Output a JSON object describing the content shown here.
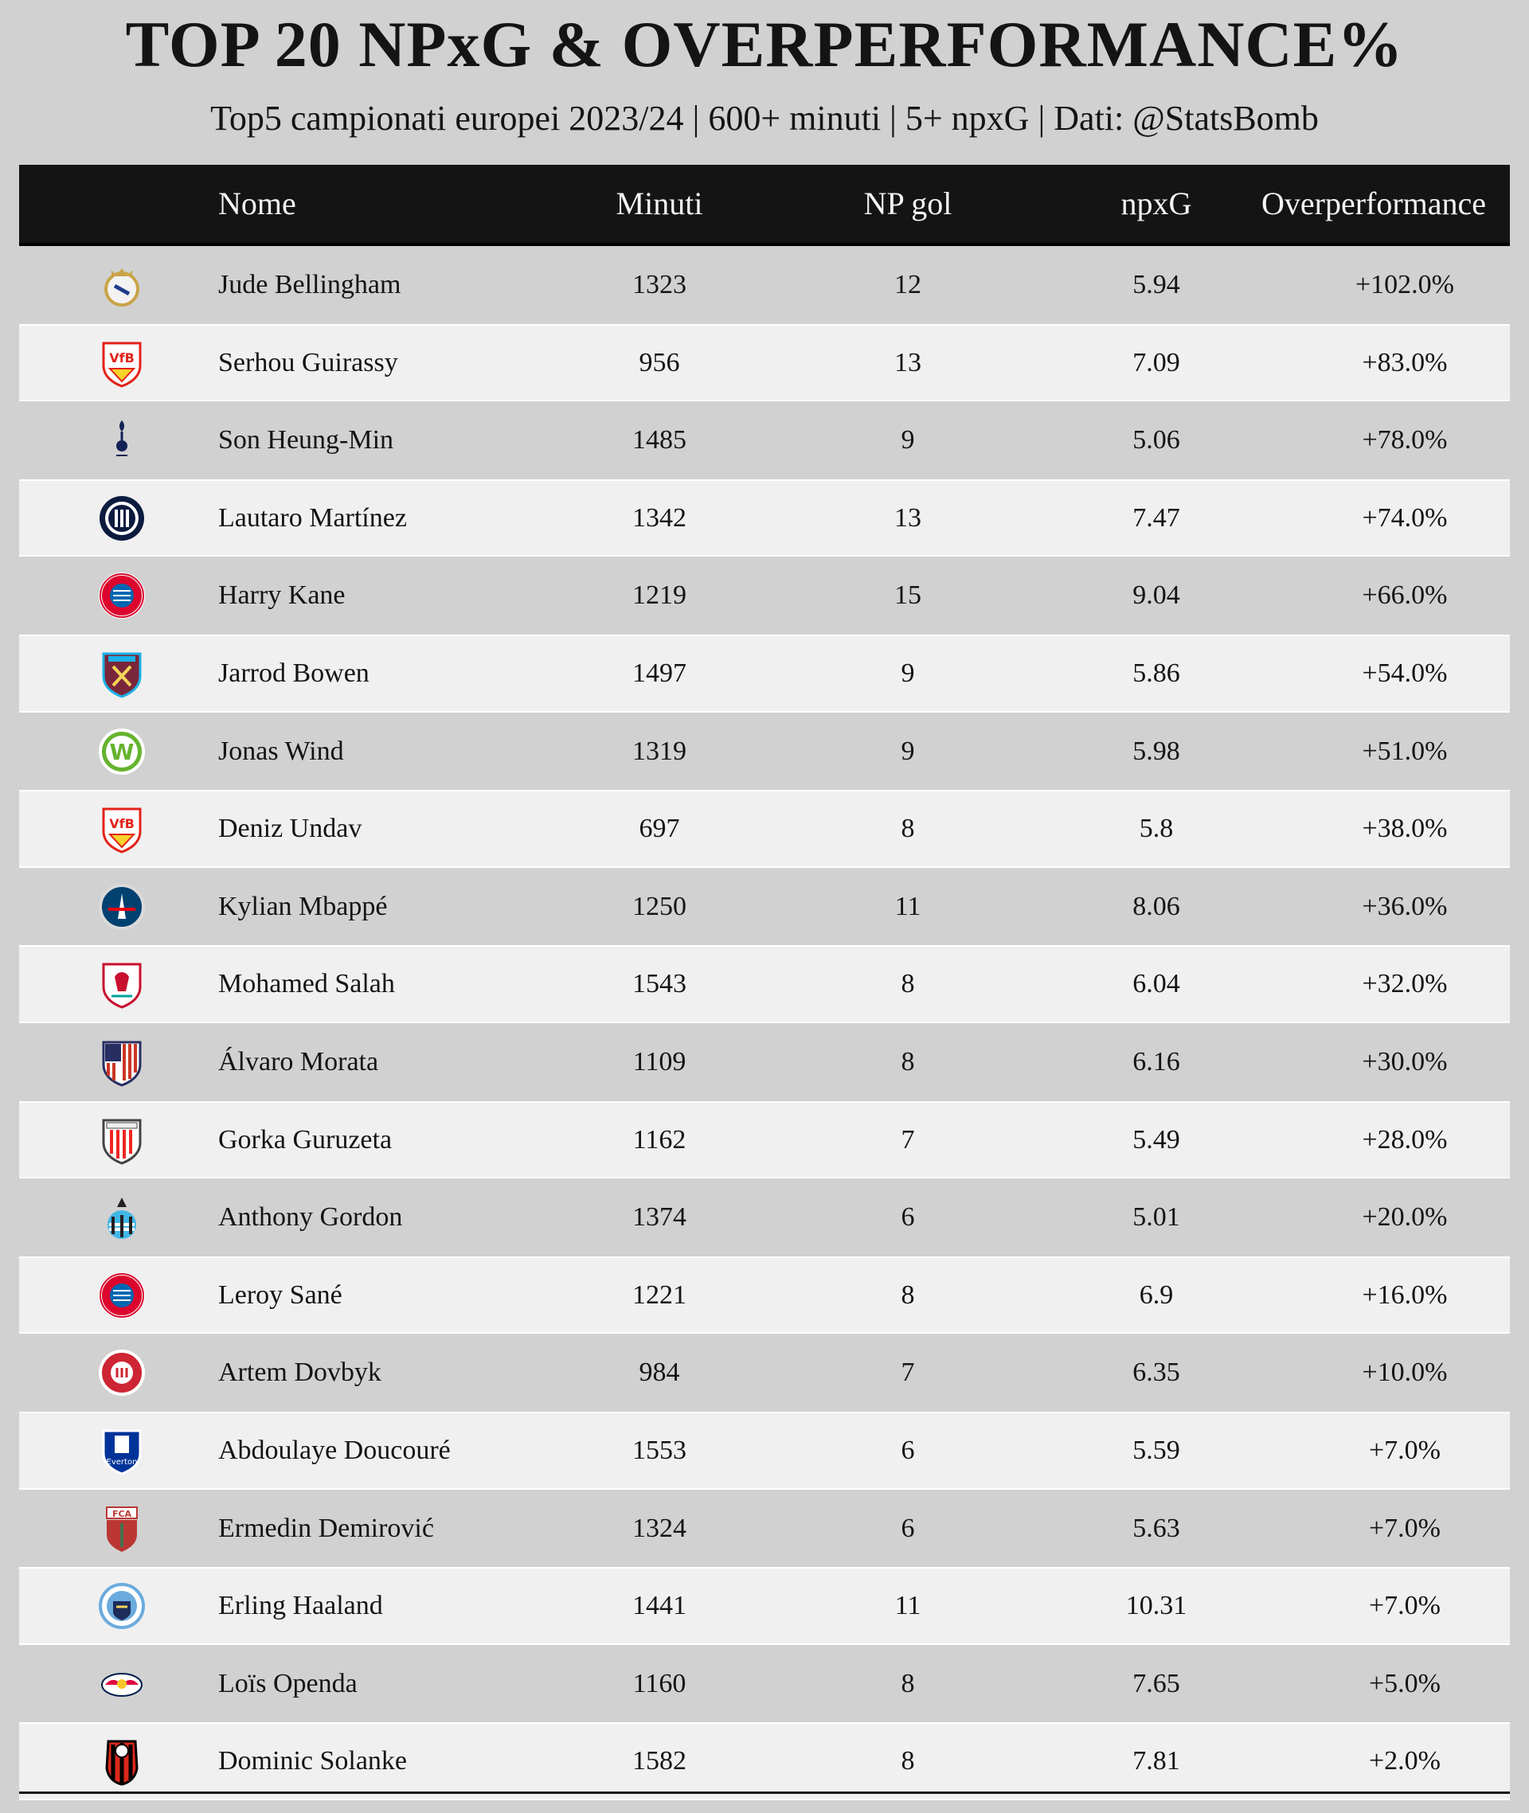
{
  "title": "TOP 20 NPxG & OVERPERFORMANCE%",
  "subtitle": "Top5 campionati europei 2023/24 | 600+ minuti | 5+ npxG | Dati: @StatsBomb",
  "chart_data": {
    "type": "table",
    "title": "TOP 20 NPxG & OVERPERFORMANCE%",
    "subtitle": "Top5 campionati europei 2023/24 | 600+ minuti | 5+ npxG | Dati: @StatsBomb",
    "columns": [
      "",
      "Nome",
      "Minuti",
      "NP gol",
      "npxG",
      "Overperformance"
    ],
    "rows": [
      {
        "crest": "real-madrid-crest",
        "name": "Jude Bellingham",
        "minutes": "1323",
        "np_goals": "12",
        "npxg": "5.94",
        "overperformance": "+102.0%"
      },
      {
        "crest": "vfb-stuttgart-crest",
        "name": "Serhou Guirassy",
        "minutes": "956",
        "np_goals": "13",
        "npxg": "7.09",
        "overperformance": "+83.0%"
      },
      {
        "crest": "tottenham-crest",
        "name": "Son Heung-Min",
        "minutes": "1485",
        "np_goals": "9",
        "npxg": "5.06",
        "overperformance": "+78.0%"
      },
      {
        "crest": "inter-crest",
        "name": "Lautaro Martínez",
        "minutes": "1342",
        "np_goals": "13",
        "npxg": "7.47",
        "overperformance": "+74.0%"
      },
      {
        "crest": "bayern-crest",
        "name": "Harry Kane",
        "minutes": "1219",
        "np_goals": "15",
        "npxg": "9.04",
        "overperformance": "+66.0%"
      },
      {
        "crest": "west-ham-crest",
        "name": "Jarrod Bowen",
        "minutes": "1497",
        "np_goals": "9",
        "npxg": "5.86",
        "overperformance": "+54.0%"
      },
      {
        "crest": "wolfsburg-crest",
        "name": "Jonas Wind",
        "minutes": "1319",
        "np_goals": "9",
        "npxg": "5.98",
        "overperformance": "+51.0%"
      },
      {
        "crest": "vfb-stuttgart-crest",
        "name": "Deniz Undav",
        "minutes": "697",
        "np_goals": "8",
        "npxg": "5.8",
        "overperformance": "+38.0%"
      },
      {
        "crest": "psg-crest",
        "name": "Kylian Mbappé",
        "minutes": "1250",
        "np_goals": "11",
        "npxg": "8.06",
        "overperformance": "+36.0%"
      },
      {
        "crest": "liverpool-crest",
        "name": "Mohamed Salah",
        "minutes": "1543",
        "np_goals": "8",
        "npxg": "6.04",
        "overperformance": "+32.0%"
      },
      {
        "crest": "atletico-crest",
        "name": "Álvaro Morata",
        "minutes": "1109",
        "np_goals": "8",
        "npxg": "6.16",
        "overperformance": "+30.0%"
      },
      {
        "crest": "athletic-club-crest",
        "name": "Gorka Guruzeta",
        "minutes": "1162",
        "np_goals": "7",
        "npxg": "5.49",
        "overperformance": "+28.0%"
      },
      {
        "crest": "newcastle-crest",
        "name": "Anthony Gordon",
        "minutes": "1374",
        "np_goals": "6",
        "npxg": "5.01",
        "overperformance": "+20.0%"
      },
      {
        "crest": "bayern-crest",
        "name": "Leroy Sané",
        "minutes": "1221",
        "np_goals": "8",
        "npxg": "6.9",
        "overperformance": "+16.0%"
      },
      {
        "crest": "girona-crest",
        "name": "Artem Dovbyk",
        "minutes": "984",
        "np_goals": "7",
        "npxg": "6.35",
        "overperformance": "+10.0%"
      },
      {
        "crest": "everton-crest",
        "name": "Abdoulaye Doucouré",
        "minutes": "1553",
        "np_goals": "6",
        "npxg": "5.59",
        "overperformance": "+7.0%"
      },
      {
        "crest": "augsburg-crest",
        "name": "Ermedin Demirović",
        "minutes": "1324",
        "np_goals": "6",
        "npxg": "5.63",
        "overperformance": "+7.0%"
      },
      {
        "crest": "man-city-crest",
        "name": "Erling Haaland",
        "minutes": "1441",
        "np_goals": "11",
        "npxg": "10.31",
        "overperformance": "+7.0%"
      },
      {
        "crest": "rb-leipzig-crest",
        "name": "Loïs Openda",
        "minutes": "1160",
        "np_goals": "8",
        "npxg": "7.65",
        "overperformance": "+5.0%"
      },
      {
        "crest": "bournemouth-crest",
        "name": "Dominic Solanke",
        "minutes": "1582",
        "np_goals": "8",
        "npxg": "7.81",
        "overperformance": "+2.0%"
      }
    ]
  },
  "colors": {
    "background": "#d1d1d1",
    "row_light": "#f0f0f0",
    "header_bg": "#141414",
    "header_text": "#f4f4f4",
    "text": "#141414"
  }
}
